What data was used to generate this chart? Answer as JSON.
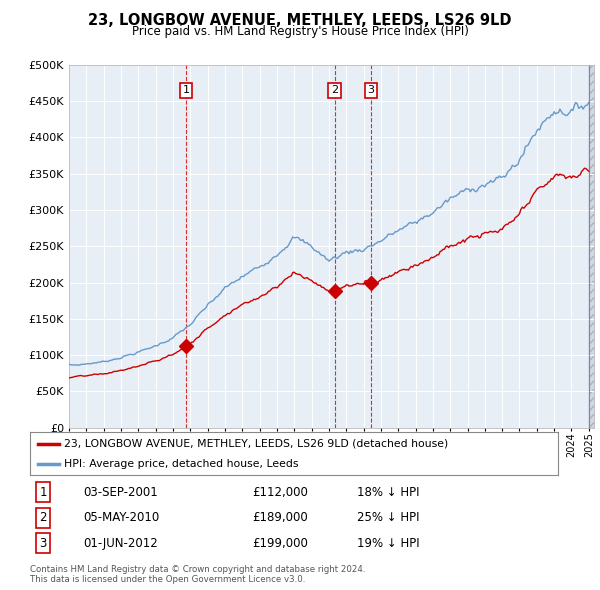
{
  "title": "23, LONGBOW AVENUE, METHLEY, LEEDS, LS26 9LD",
  "subtitle": "Price paid vs. HM Land Registry's House Price Index (HPI)",
  "legend_label_red": "23, LONGBOW AVENUE, METHLEY, LEEDS, LS26 9LD (detached house)",
  "legend_label_blue": "HPI: Average price, detached house, Leeds",
  "footer_line1": "Contains HM Land Registry data © Crown copyright and database right 2024.",
  "footer_line2": "This data is licensed under the Open Government Licence v3.0.",
  "transactions": [
    {
      "num": "1",
      "date": "03-SEP-2001",
      "price": "£112,000",
      "pct": "18% ↓ HPI",
      "year": 2001.75
    },
    {
      "num": "2",
      "date": "05-MAY-2010",
      "price": "£189,000",
      "pct": "25% ↓ HPI",
      "year": 2010.34
    },
    {
      "num": "3",
      "date": "01-JUN-2012",
      "price": "£199,000",
      "pct": "19% ↓ HPI",
      "year": 2012.42
    }
  ],
  "transaction_values": [
    112000,
    189000,
    199000
  ],
  "transaction_years": [
    2001.75,
    2010.34,
    2012.42
  ],
  "ylim": [
    0,
    500000
  ],
  "yticks": [
    0,
    50000,
    100000,
    150000,
    200000,
    250000,
    300000,
    350000,
    400000,
    450000,
    500000
  ],
  "color_red": "#cc0000",
  "color_blue": "#6699cc",
  "color_dashed": "#cc0000",
  "background_plot": "#e8eef5",
  "background_fig": "#ffffff",
  "grid_color": "#ffffff"
}
